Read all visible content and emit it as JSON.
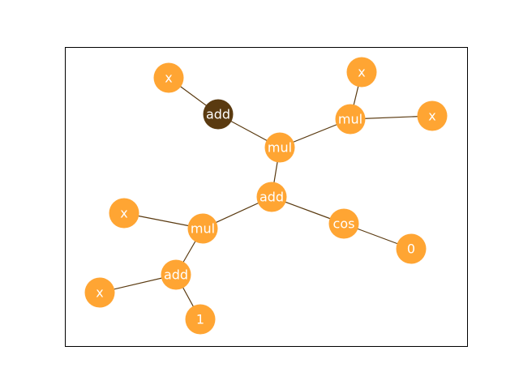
{
  "colors": {
    "node": "#ffa533",
    "highlight_node": "#5a3a10",
    "edge": "#5a3a10",
    "label": "#ffffff",
    "frame": "#000000",
    "background": "#ffffff"
  },
  "graph": {
    "nodes": [
      {
        "id": "add_root",
        "label": "add",
        "highlighted": false
      },
      {
        "id": "mul_top",
        "label": "mul",
        "highlighted": false
      },
      {
        "id": "add_dark",
        "label": "add",
        "highlighted": true
      },
      {
        "id": "x_topleft",
        "label": "x",
        "highlighted": false
      },
      {
        "id": "mul_topright",
        "label": "mul",
        "highlighted": false
      },
      {
        "id": "x_top",
        "label": "x",
        "highlighted": false
      },
      {
        "id": "x_right",
        "label": "x",
        "highlighted": false
      },
      {
        "id": "mul_left",
        "label": "mul",
        "highlighted": false
      },
      {
        "id": "x_left",
        "label": "x",
        "highlighted": false
      },
      {
        "id": "add_bottom",
        "label": "add",
        "highlighted": false
      },
      {
        "id": "x_bottomleft",
        "label": "x",
        "highlighted": false
      },
      {
        "id": "one",
        "label": "1",
        "highlighted": false
      },
      {
        "id": "cos",
        "label": "cos",
        "highlighted": false
      },
      {
        "id": "zero",
        "label": "0",
        "highlighted": false
      }
    ],
    "edges": [
      [
        "add_root",
        "mul_top"
      ],
      [
        "mul_top",
        "add_dark"
      ],
      [
        "add_dark",
        "x_topleft"
      ],
      [
        "mul_top",
        "mul_topright"
      ],
      [
        "mul_topright",
        "x_top"
      ],
      [
        "mul_topright",
        "x_right"
      ],
      [
        "add_root",
        "mul_left"
      ],
      [
        "mul_left",
        "x_left"
      ],
      [
        "mul_left",
        "add_bottom"
      ],
      [
        "add_bottom",
        "x_bottomleft"
      ],
      [
        "add_bottom",
        "one"
      ],
      [
        "add_root",
        "cos"
      ],
      [
        "cos",
        "zero"
      ]
    ]
  }
}
